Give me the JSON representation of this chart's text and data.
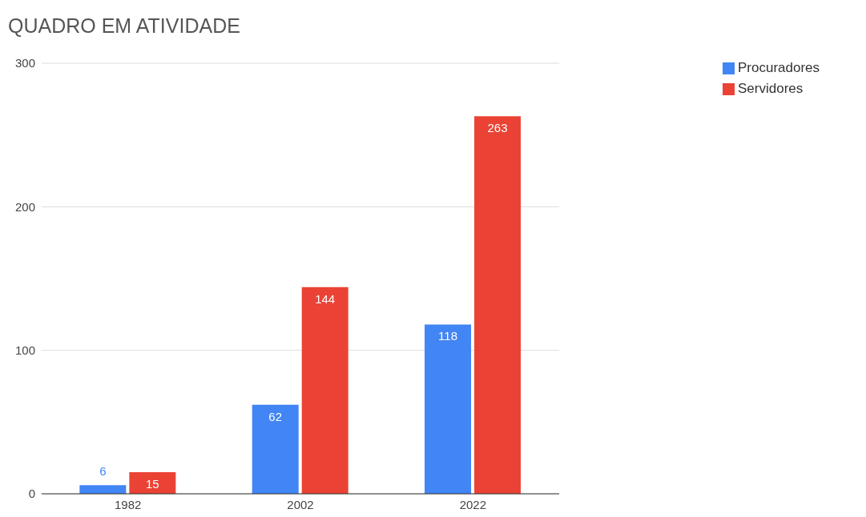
{
  "chart_data": {
    "type": "bar",
    "title": "QUADRO EM ATIVIDADE",
    "categories": [
      "1982",
      "2002",
      "2022"
    ],
    "series": [
      {
        "name": "Procuradores",
        "color": "#4285f4",
        "values": [
          6,
          62,
          118
        ]
      },
      {
        "name": "Servidores",
        "color": "#ea4335",
        "values": [
          15,
          144,
          263
        ]
      }
    ],
    "ylim": [
      0,
      300
    ],
    "yticks": [
      0,
      100,
      200,
      300
    ],
    "grid": "y",
    "legend": "top right",
    "data_labels": true
  }
}
